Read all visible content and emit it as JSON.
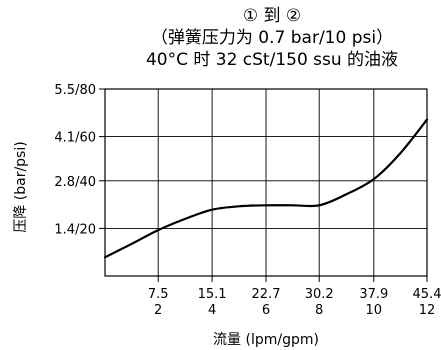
{
  "chart_data": {
    "type": "line",
    "title_lines": [
      "① 到 ②",
      "（弹簧压力为 0.7 bar/10 psi）",
      "40°C 时 32 cSt/150 ssu 的油液"
    ],
    "xlabel": "流量 (lpm/gpm)",
    "ylabel": "压降 (bar/psi)",
    "xlim": [
      0,
      45.4
    ],
    "ylim": [
      0,
      5.5
    ],
    "x_ticks": [
      {
        "value": 7.5,
        "label_primary": "7.5",
        "label_secondary": "2"
      },
      {
        "value": 15.1,
        "label_primary": "15.1",
        "label_secondary": "4"
      },
      {
        "value": 22.7,
        "label_primary": "22.7",
        "label_secondary": "6"
      },
      {
        "value": 30.2,
        "label_primary": "30.2",
        "label_secondary": "8"
      },
      {
        "value": 37.9,
        "label_primary": "37.9",
        "label_secondary": "10"
      },
      {
        "value": 45.4,
        "label_primary": "45.4",
        "label_secondary": "12"
      }
    ],
    "y_ticks": [
      {
        "value": 1.4,
        "label": "1.4/20"
      },
      {
        "value": 2.8,
        "label": "2.8/40"
      },
      {
        "value": 4.1,
        "label": "4.1/60"
      },
      {
        "value": 5.5,
        "label": "5.5/80"
      }
    ],
    "grid": true,
    "series": [
      {
        "color": "#000000",
        "points": [
          {
            "x": 0,
            "y": 0.55
          },
          {
            "x": 3.8,
            "y": 0.95
          },
          {
            "x": 7.5,
            "y": 1.35
          },
          {
            "x": 11.3,
            "y": 1.68
          },
          {
            "x": 15.1,
            "y": 1.95
          },
          {
            "x": 18.9,
            "y": 2.05
          },
          {
            "x": 22.7,
            "y": 2.08
          },
          {
            "x": 26.5,
            "y": 2.08
          },
          {
            "x": 30.2,
            "y": 2.08
          },
          {
            "x": 34.0,
            "y": 2.4
          },
          {
            "x": 37.9,
            "y": 2.85
          },
          {
            "x": 41.6,
            "y": 3.6
          },
          {
            "x": 45.4,
            "y": 4.6
          }
        ]
      }
    ]
  }
}
